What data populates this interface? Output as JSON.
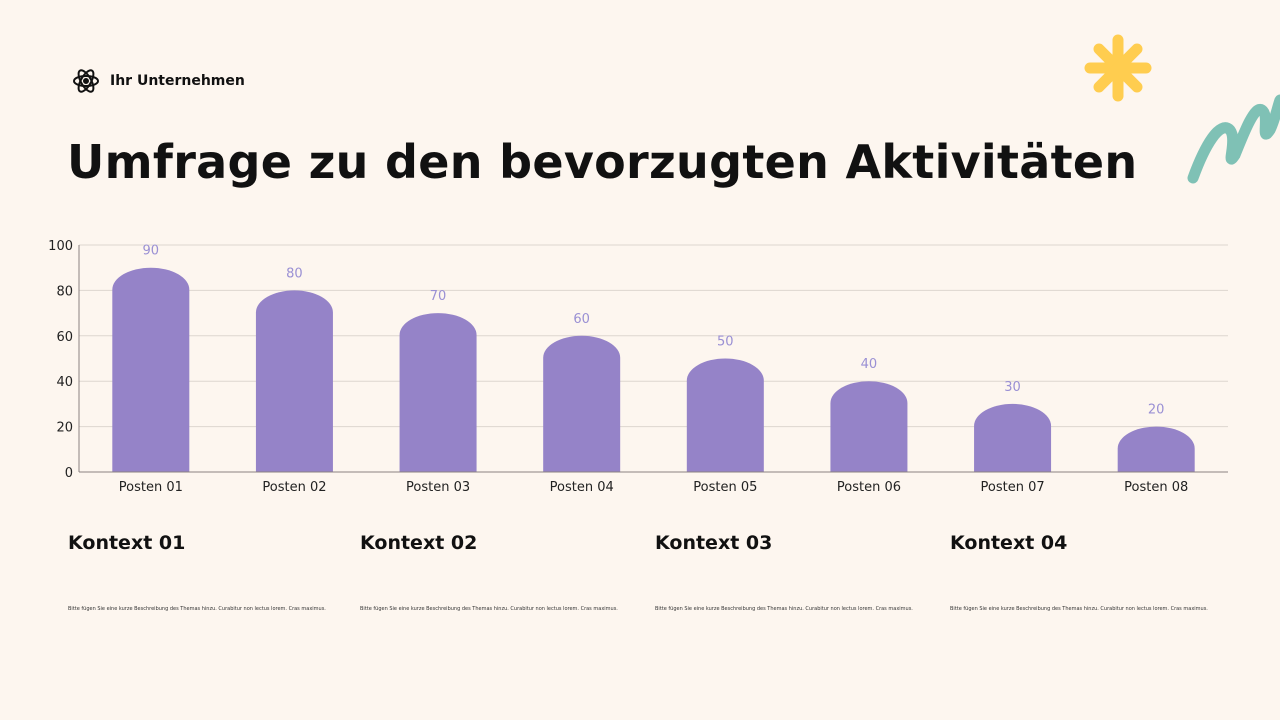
{
  "brand": {
    "name": "Ihr Unternehmen",
    "icon": "atom-icon"
  },
  "title": "Umfrage zu den bevorzugten Aktivitäten",
  "chart_data": {
    "type": "bar",
    "categories": [
      "Posten 01",
      "Posten 02",
      "Posten 03",
      "Posten 04",
      "Posten 05",
      "Posten 06",
      "Posten 07",
      "Posten 08"
    ],
    "values": [
      90,
      80,
      70,
      60,
      50,
      40,
      30,
      20
    ],
    "data_labels": [
      "90",
      "80",
      "70",
      "60",
      "50",
      "40",
      "30",
      "20"
    ],
    "yticks": [
      "0",
      "20",
      "40",
      "60",
      "80",
      "100"
    ],
    "ylim": [
      0,
      100
    ],
    "grid": true,
    "bar_color": "#9583c8",
    "label_color": "#9a90d4"
  },
  "contexts": [
    {
      "heading": "Kontext 01",
      "text": "Bitte fügen Sie eine kurze Beschreibung des Themas hinzu. Curabitur non lectus lorem. Cras maximus."
    },
    {
      "heading": "Kontext 02",
      "text": "Bitte fügen Sie eine kurze Beschreibung des Themas hinzu. Curabitur non lectus lorem. Cras maximus."
    },
    {
      "heading": "Kontext 03",
      "text": "Bitte fügen Sie eine kurze Beschreibung des Themas hinzu. Curabitur non lectus lorem. Cras maximus."
    },
    {
      "heading": "Kontext 04",
      "text": "Bitte fügen Sie eine kurze Beschreibung des Themas hinzu. Curabitur non lectus lorem. Cras maximus."
    }
  ],
  "decorations": {
    "star_color": "#ffcd4f",
    "squiggle_color": "#7fc1b5"
  }
}
